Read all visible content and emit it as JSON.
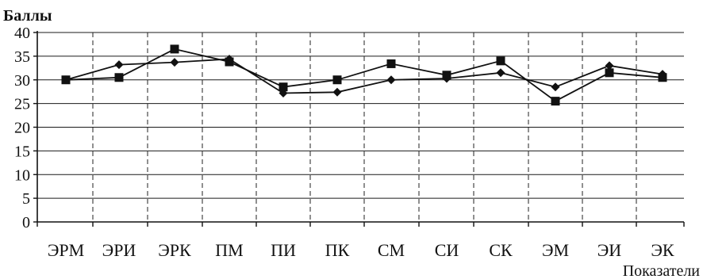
{
  "chart_data": {
    "type": "line",
    "ylabel": "Баллы",
    "xlabel": "Показатели",
    "ylim": [
      0,
      40
    ],
    "y_ticks": [
      "0",
      "5",
      "10",
      "15",
      "20",
      "25",
      "30",
      "35",
      "40"
    ],
    "grid": true,
    "legend": "none",
    "categories": [
      "ЭРМ",
      "ЭРИ",
      "ЭРК",
      "ПМ",
      "ПИ",
      "ПК",
      "СМ",
      "СИ",
      "СК",
      "ЭМ",
      "ЭИ",
      "ЭК"
    ],
    "series": [
      {
        "marker": "diamond",
        "values": [
          30.0,
          33.2,
          33.7,
          34.4,
          27.2,
          27.4,
          30.0,
          30.3,
          31.5,
          28.5,
          33.0,
          31.2
        ]
      },
      {
        "marker": "square",
        "values": [
          30.0,
          30.5,
          36.5,
          33.8,
          28.5,
          30.0,
          33.4,
          31.0,
          34.0,
          25.5,
          31.5,
          30.5
        ]
      }
    ],
    "line_color": "#111111"
  }
}
